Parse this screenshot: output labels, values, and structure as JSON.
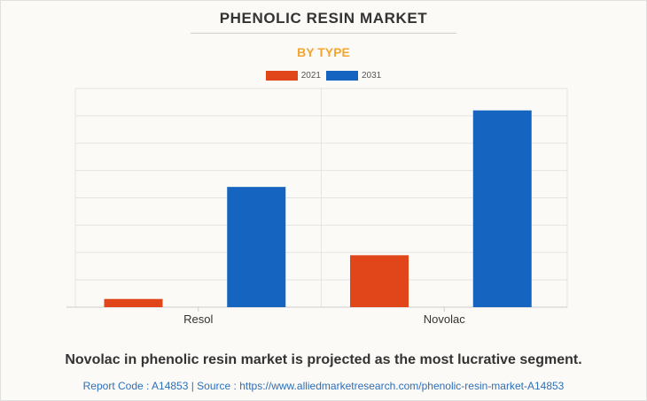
{
  "title": "PHENOLIC RESIN MARKET",
  "subtitle": "BY TYPE",
  "colors": {
    "2021": "#e0461a",
    "2031": "#1565c0",
    "subtitle": "#f3a530",
    "source": "#2d6fb7"
  },
  "chart_data": {
    "type": "bar",
    "categories": [
      "Resol",
      "Novolac"
    ],
    "series": [
      {
        "name": "2021",
        "values": [
          0.3,
          1.9
        ]
      },
      {
        "name": "2031",
        "values": [
          4.4,
          7.2
        ]
      }
    ],
    "ylim": [
      0,
      8
    ],
    "y_axis_labels_shown": false,
    "grid": true,
    "legend": "top-center"
  },
  "footnote": "Novolac in phenolic resin market is projected as the most lucrative segment.",
  "source": "Report Code : A14853  |  Source : https://www.alliedmarketresearch.com/phenolic-resin-market-A14853"
}
